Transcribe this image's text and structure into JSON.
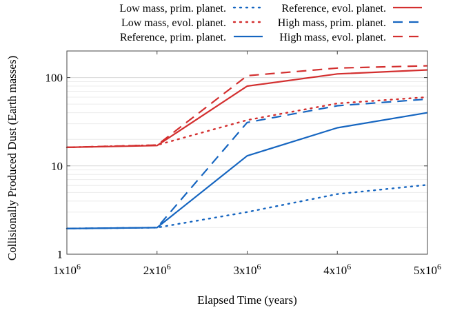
{
  "chart_data": {
    "type": "line",
    "xlabel": "Elapsed Time (years)",
    "ylabel": "Collisionally Produced Dust (Earth masses)",
    "xlim": [
      1000000,
      5000000
    ],
    "ylim": [
      1,
      200
    ],
    "yscale": "log",
    "grid": true,
    "legend_position": "top",
    "x_ticks": [
      {
        "value": 1000000,
        "base": "1x10",
        "exp": "6"
      },
      {
        "value": 2000000,
        "base": "2x10",
        "exp": "6"
      },
      {
        "value": 3000000,
        "base": "3x10",
        "exp": "6"
      },
      {
        "value": 4000000,
        "base": "4x10",
        "exp": "6"
      },
      {
        "value": 5000000,
        "base": "5x10",
        "exp": "6"
      }
    ],
    "y_ticks": [
      {
        "value": 1,
        "label": "1"
      },
      {
        "value": 10,
        "label": "10"
      },
      {
        "value": 100,
        "label": "100"
      }
    ],
    "x": [
      1000000,
      2000000,
      3000000,
      4000000,
      5000000
    ],
    "series": [
      {
        "name": "Low mass, prim. planet.",
        "color": "#1565c0",
        "style": "dotted",
        "values": [
          1.95,
          2.0,
          3.0,
          4.8,
          6.1
        ]
      },
      {
        "name": "Low mass, evol. planet.",
        "color": "#d32f2f",
        "style": "dotted",
        "values": [
          16.2,
          17.2,
          33.0,
          51.0,
          60.0
        ]
      },
      {
        "name": "Reference, prim. planet.",
        "color": "#1565c0",
        "style": "solid",
        "values": [
          1.95,
          2.0,
          13.0,
          27.0,
          40.0
        ]
      },
      {
        "name": "Reference, evol. planet.",
        "color": "#d32f2f",
        "style": "solid",
        "values": [
          16.2,
          17.0,
          80.0,
          110.0,
          122.0
        ]
      },
      {
        "name": "High mass, prim. planet.",
        "color": "#1565c0",
        "style": "dashed",
        "values": [
          1.95,
          2.0,
          31.0,
          48.0,
          57.0
        ]
      },
      {
        "name": "High mass, evol. planet.",
        "color": "#d32f2f",
        "style": "dashed",
        "values": [
          16.2,
          17.2,
          105.0,
          128.0,
          136.0
        ]
      }
    ]
  }
}
